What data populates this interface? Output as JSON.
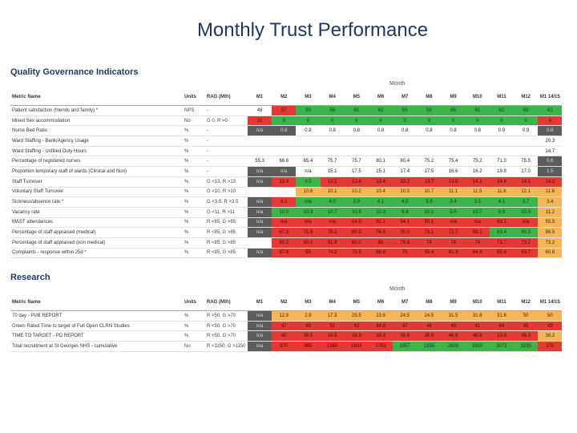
{
  "page": {
    "title": "Monthly  Trust Performance"
  },
  "colors": {
    "green": "#3cb44b",
    "red": "#e53935",
    "amber": "#f5b65a",
    "yellow": "#d7d74c",
    "grey": "#5c5c5c",
    "title": "#1f3864"
  },
  "headers": {
    "metric": "Metric Name",
    "units": "Units",
    "rag": "RAG (Mth)",
    "months": [
      "M1",
      "M2",
      "M3",
      "M4",
      "M5",
      "M6",
      "M7",
      "M8",
      "M9",
      "M10",
      "M11",
      "M12",
      "M1 14/15"
    ],
    "month_label": "Month"
  },
  "quality": {
    "title": "Quality Governance Indicators",
    "rows": [
      {
        "name": "Patient satisfaction (friends and family) *",
        "unit": "NPS",
        "rag": "-",
        "cells": [
          [
            "48",
            "n"
          ],
          [
            "57",
            "r"
          ],
          [
            "59",
            "g"
          ],
          [
            "56",
            "g"
          ],
          [
            "61",
            "g"
          ],
          [
            "62",
            "g"
          ],
          [
            "55",
            "g"
          ],
          [
            "58",
            "g"
          ],
          [
            "65",
            "g"
          ],
          [
            "61",
            "g"
          ],
          [
            "62",
            "g"
          ],
          [
            "63",
            "g"
          ],
          [
            "61",
            "g"
          ]
        ]
      },
      {
        "name": "Mixed Sex accommodation",
        "unit": "No",
        "rag": "G 0, R >0",
        "cells": [
          [
            "22",
            "r"
          ],
          [
            "0",
            "g"
          ],
          [
            "0",
            "g"
          ],
          [
            "0",
            "g"
          ],
          [
            "0",
            "g"
          ],
          [
            "0",
            "g"
          ],
          [
            "0",
            "g"
          ],
          [
            "0",
            "g"
          ],
          [
            "0",
            "g"
          ],
          [
            "0",
            "g"
          ],
          [
            "0",
            "g"
          ],
          [
            "0",
            "g"
          ],
          [
            "4",
            "r"
          ]
        ]
      },
      {
        "name": "Nurse Bed Ratio",
        "unit": "%",
        "rag": "-",
        "cells": [
          [
            "n/a",
            "d"
          ],
          [
            "0.8",
            "d"
          ],
          [
            "0.8",
            "n"
          ],
          [
            "0.8",
            "n"
          ],
          [
            "0.8",
            "n"
          ],
          [
            "0.8",
            "n"
          ],
          [
            "0.8",
            "n"
          ],
          [
            "0.8",
            "n"
          ],
          [
            "0.8",
            "n"
          ],
          [
            "0.8",
            "n"
          ],
          [
            "0.9",
            "n"
          ],
          [
            "0.9",
            "n"
          ],
          [
            "0.8",
            "d"
          ]
        ]
      },
      {
        "name": "Ward Staffing - Bank/Agency Usage",
        "unit": "%",
        "rag": "-",
        "cells": [
          [
            "",
            "n"
          ],
          [
            "",
            "n"
          ],
          [
            "",
            "n"
          ],
          [
            "",
            "n"
          ],
          [
            "",
            "n"
          ],
          [
            "",
            "n"
          ],
          [
            "",
            "n"
          ],
          [
            "",
            "n"
          ],
          [
            "",
            "n"
          ],
          [
            "",
            "n"
          ],
          [
            "",
            "n"
          ],
          [
            "",
            "n"
          ],
          [
            "20.3",
            "n"
          ]
        ]
      },
      {
        "name": "Ward Staffing - Unfilled Duty Hours",
        "unit": "%",
        "rag": "-",
        "cells": [
          [
            "",
            "n"
          ],
          [
            "",
            "n"
          ],
          [
            "",
            "n"
          ],
          [
            "",
            "n"
          ],
          [
            "",
            "n"
          ],
          [
            "",
            "n"
          ],
          [
            "",
            "n"
          ],
          [
            "",
            "n"
          ],
          [
            "",
            "n"
          ],
          [
            "",
            "n"
          ],
          [
            "",
            "n"
          ],
          [
            "",
            "n"
          ],
          [
            "14.7",
            "n"
          ]
        ]
      },
      {
        "name": "Percentage of registered nurses",
        "unit": "%",
        "rag": "-",
        "cells": [
          [
            "55.3",
            "n"
          ],
          [
            "66.6",
            "n"
          ],
          [
            "65.4",
            "n"
          ],
          [
            "75.7",
            "n"
          ],
          [
            "75.7",
            "n"
          ],
          [
            "80.1",
            "n"
          ],
          [
            "80.4",
            "n"
          ],
          [
            "75.2",
            "n"
          ],
          [
            "75.4",
            "n"
          ],
          [
            "75.2",
            "n"
          ],
          [
            "71.0",
            "n"
          ],
          [
            "75.5",
            "n"
          ],
          [
            "0.6",
            "d"
          ]
        ]
      },
      {
        "name": "Proportion temporary staff of wards (Clinical and Non)",
        "unit": "%",
        "rag": "-",
        "cells": [
          [
            "n/a",
            "d"
          ],
          [
            "n/a",
            "d"
          ],
          [
            "n/a",
            "n"
          ],
          [
            "15.1",
            "n"
          ],
          [
            "17.5",
            "n"
          ],
          [
            "15.1",
            "n"
          ],
          [
            "17.4",
            "n"
          ],
          [
            "17.5",
            "n"
          ],
          [
            "16.6",
            "n"
          ],
          [
            "16.2",
            "n"
          ],
          [
            "19.9",
            "n"
          ],
          [
            "17.0",
            "n"
          ],
          [
            "1.5",
            "d"
          ]
        ]
      },
      {
        "name": "Staff Turnover",
        "unit": "%",
        "rag": "G <13, R >13",
        "cells": [
          [
            "n/a",
            "d"
          ],
          [
            "13.4",
            "r"
          ],
          [
            "3.5",
            "g"
          ],
          [
            "13.1",
            "r"
          ],
          [
            "13.4",
            "r"
          ],
          [
            "13.4",
            "r"
          ],
          [
            "13.2",
            "r"
          ],
          [
            "13.7",
            "r"
          ],
          [
            "13.6",
            "r"
          ],
          [
            "14.1",
            "r"
          ],
          [
            "14.4",
            "r"
          ],
          [
            "14.1",
            "r"
          ],
          [
            "14.2",
            "r"
          ]
        ]
      },
      {
        "name": "Voluntary Staff Turnover",
        "unit": "%",
        "rag": "G <10, R >10",
        "cells": [
          [
            "",
            "n"
          ],
          [
            "",
            "n"
          ],
          [
            "10.6",
            "a"
          ],
          [
            "10.1",
            "a"
          ],
          [
            "10.2",
            "a"
          ],
          [
            "10.4",
            "a"
          ],
          [
            "10.5",
            "a"
          ],
          [
            "10.7",
            "a"
          ],
          [
            "11.1",
            "a"
          ],
          [
            "11.5",
            "a"
          ],
          [
            "11.6",
            "a"
          ],
          [
            "12.1",
            "a"
          ],
          [
            "11.6",
            "a"
          ]
        ]
      },
      {
        "name": "Sickness/absence rate *",
        "unit": "%",
        "rag": "G <3.5, R >3.5",
        "cells": [
          [
            "n/a",
            "d"
          ],
          [
            "4.1",
            "r"
          ],
          [
            "n/a",
            "g"
          ],
          [
            "4.0",
            "g"
          ],
          [
            "3.9",
            "g"
          ],
          [
            "4.1",
            "g"
          ],
          [
            "4.0",
            "g"
          ],
          [
            "3.9",
            "g"
          ],
          [
            "3.4",
            "g"
          ],
          [
            "3.5",
            "g"
          ],
          [
            "4.1",
            "g"
          ],
          [
            "3.7",
            "g"
          ],
          [
            "3.4",
            "a"
          ]
        ]
      },
      {
        "name": "Vacancy rate",
        "unit": "%",
        "rag": "G <11, R >11",
        "cells": [
          [
            "n/a",
            "d"
          ],
          [
            "10.0",
            "g"
          ],
          [
            "10.3",
            "g"
          ],
          [
            "10.7",
            "g"
          ],
          [
            "10.8",
            "g"
          ],
          [
            "10.9",
            "g"
          ],
          [
            "9.4",
            "g"
          ],
          [
            "10.1",
            "g"
          ],
          [
            "9.5",
            "g"
          ],
          [
            "10.7",
            "g"
          ],
          [
            "9.9",
            "g"
          ],
          [
            "10.3",
            "g"
          ],
          [
            "11.2",
            "a"
          ]
        ]
      },
      {
        "name": "MAST attendances",
        "unit": "%",
        "rag": "R <65, G >65",
        "cells": [
          [
            "n/a",
            "d"
          ],
          [
            "n/a",
            "r"
          ],
          [
            "n/a",
            "r"
          ],
          [
            "n/a",
            "r"
          ],
          [
            "54.0",
            "r"
          ],
          [
            "52.1",
            "r"
          ],
          [
            "54.1",
            "r"
          ],
          [
            "50.1",
            "r"
          ],
          [
            "n/a",
            "r"
          ],
          [
            "n/a",
            "r"
          ],
          [
            "53.1",
            "r"
          ],
          [
            "n/a",
            "r"
          ],
          [
            "55.5",
            "a"
          ]
        ]
      },
      {
        "name": "Percentage of staff appraised (medical)",
        "unit": "%",
        "rag": "R <85, G >85",
        "cells": [
          [
            "n/a",
            "d"
          ],
          [
            "67.3",
            "r"
          ],
          [
            "71.8",
            "r"
          ],
          [
            "78.1",
            "r"
          ],
          [
            "80.2",
            "r"
          ],
          [
            "76.8",
            "r"
          ],
          [
            "70.0",
            "r"
          ],
          [
            "73.1",
            "r"
          ],
          [
            "72.7",
            "r"
          ],
          [
            "83.1",
            "r"
          ],
          [
            "83.4",
            "g"
          ],
          [
            "85.3",
            "g"
          ],
          [
            "86.5",
            "a"
          ]
        ]
      },
      {
        "name": "Percentage of staff appraised (non medical)",
        "unit": "%",
        "rag": "R <85, G >85",
        "cells": [
          [
            "",
            "n"
          ],
          [
            "80.2",
            "r"
          ],
          [
            "80.0",
            "r"
          ],
          [
            "81.9",
            "r"
          ],
          [
            "80.0",
            "r"
          ],
          [
            "80",
            "r"
          ],
          [
            "79.6",
            "r"
          ],
          [
            "74",
            "r"
          ],
          [
            "74",
            "r"
          ],
          [
            "74",
            "r"
          ],
          [
            "73.7",
            "r"
          ],
          [
            "73.2",
            "r"
          ],
          [
            "73.2",
            "a"
          ]
        ]
      },
      {
        "name": "Complaints - response within 25d *",
        "unit": "%",
        "rag": "R <85, G >85",
        "cells": [
          [
            "n/a",
            "d"
          ],
          [
            "67.8",
            "r"
          ],
          [
            "55",
            "r"
          ],
          [
            "74.2",
            "r"
          ],
          [
            "75.5",
            "r"
          ],
          [
            "66.8",
            "r"
          ],
          [
            "75",
            "r"
          ],
          [
            "55.4",
            "r"
          ],
          [
            "61.3",
            "r"
          ],
          [
            "64.6",
            "r"
          ],
          [
            "55.8",
            "r"
          ],
          [
            "63.7",
            "r"
          ],
          [
            "60.6",
            "a"
          ]
        ]
      }
    ]
  },
  "research": {
    "title": "Research",
    "rows": [
      {
        "name": "70 day - PUB REPORT",
        "unit": "%",
        "rag": "R <50, G >70",
        "cells": [
          [
            "n/a",
            "d"
          ],
          [
            "12.9",
            "a"
          ],
          [
            "2.9",
            "a"
          ],
          [
            "17.3",
            "a"
          ],
          [
            "25.5",
            "a"
          ],
          [
            "23.6",
            "a"
          ],
          [
            "24.5",
            "a"
          ],
          [
            "24.5",
            "a"
          ],
          [
            "31.5",
            "a"
          ],
          [
            "31.6",
            "a"
          ],
          [
            "31.6",
            "a"
          ],
          [
            "50",
            "a"
          ],
          [
            "50",
            "a"
          ]
        ]
      },
      {
        "name": "Green Rated Time to target of Full Open CLRN Studies",
        "unit": "%",
        "rag": "R <50, G >70",
        "cells": [
          [
            "n/a",
            "d"
          ],
          [
            "47",
            "r"
          ],
          [
            "49",
            "r"
          ],
          [
            "51",
            "r"
          ],
          [
            "42",
            "r"
          ],
          [
            "44.8",
            "r"
          ],
          [
            "47",
            "r"
          ],
          [
            "46",
            "r"
          ],
          [
            "46",
            "r"
          ],
          [
            "41",
            "r"
          ],
          [
            "44",
            "r"
          ],
          [
            "45",
            "r"
          ],
          [
            "43",
            "r"
          ]
        ]
      },
      {
        "name": "TIME TO TARGET - PD REPORT",
        "unit": "%",
        "rag": "R <50, G >70",
        "cells": [
          [
            "n/a",
            "d"
          ],
          [
            "40",
            "r"
          ],
          [
            "38.5",
            "r"
          ],
          [
            "16.5",
            "r"
          ],
          [
            "18.3",
            "r"
          ],
          [
            "16.3",
            "r"
          ],
          [
            "36.9",
            "r"
          ],
          [
            "35.9",
            "r"
          ],
          [
            "46.8",
            "r"
          ],
          [
            "46.8",
            "r"
          ],
          [
            "13.8",
            "r"
          ],
          [
            "36.3",
            "r"
          ],
          [
            "36.2",
            "a"
          ]
        ]
      },
      {
        "name": "Total recruitment at St Georges NHS - cumulative",
        "unit": "No",
        "rag": "R <1150, G >1150",
        "cells": [
          [
            "n/a",
            "d"
          ],
          [
            "670",
            "r"
          ],
          [
            "985",
            "r"
          ],
          [
            "1360",
            "r"
          ],
          [
            "1603",
            "r"
          ],
          [
            "1791",
            "r"
          ],
          [
            "1957",
            "g"
          ],
          [
            "2356",
            "g"
          ],
          [
            "2606",
            "g"
          ],
          [
            "2920",
            "g"
          ],
          [
            "3073",
            "g"
          ],
          [
            "3335",
            "g"
          ],
          [
            "170",
            "r"
          ]
        ]
      }
    ]
  }
}
